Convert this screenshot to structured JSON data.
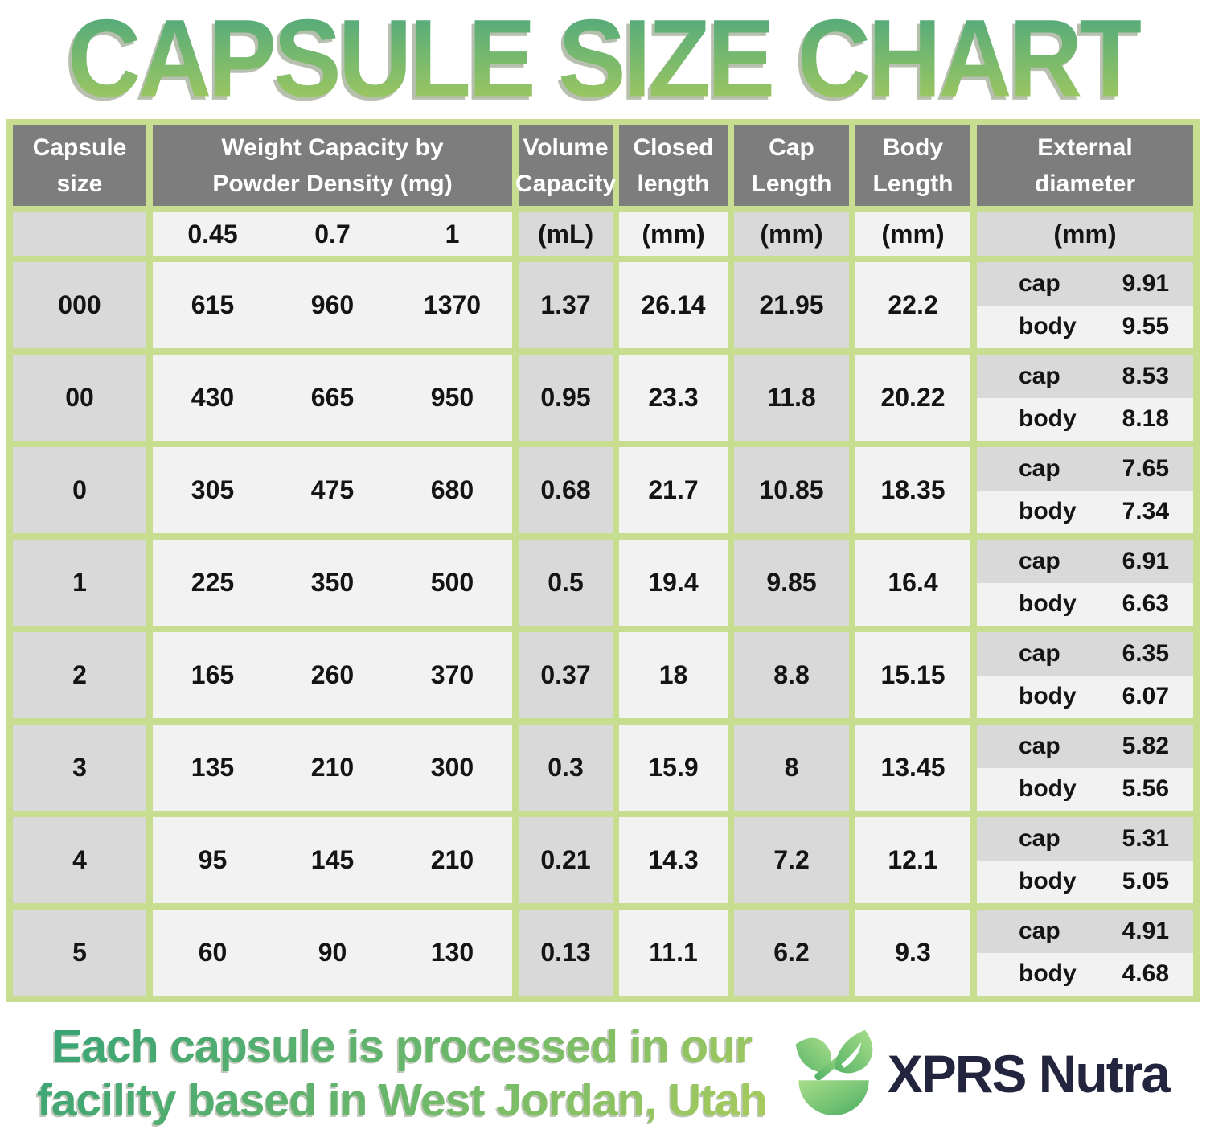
{
  "title": "CAPSULE SIZE CHART",
  "chart_data": {
    "type": "table",
    "title": "CAPSULE SIZE CHART",
    "columns": [
      "Capsule size",
      "Weight Capacity by Powder Density 0.45 (mg)",
      "Weight Capacity by Powder Density 0.7 (mg)",
      "Weight Capacity by Powder Density 1 (mg)",
      "Volume Capacity (mL)",
      "Closed length (mm)",
      "Cap Length (mm)",
      "Body Length (mm)",
      "External diameter cap (mm)",
      "External diameter body (mm)"
    ],
    "rows": [
      [
        "000",
        615,
        960,
        1370,
        1.37,
        26.14,
        21.95,
        22.2,
        9.91,
        9.55
      ],
      [
        "00",
        430,
        665,
        950,
        0.95,
        23.3,
        11.8,
        20.22,
        8.53,
        8.18
      ],
      [
        "0",
        305,
        475,
        680,
        0.68,
        21.7,
        10.85,
        18.35,
        7.65,
        7.34
      ],
      [
        "1",
        225,
        350,
        500,
        0.5,
        19.4,
        9.85,
        16.4,
        6.91,
        6.63
      ],
      [
        "2",
        165,
        260,
        370,
        0.37,
        18,
        8.8,
        15.15,
        6.35,
        6.07
      ],
      [
        "3",
        135,
        210,
        300,
        0.3,
        15.9,
        8,
        13.45,
        5.82,
        5.56
      ],
      [
        "4",
        95,
        145,
        210,
        0.21,
        14.3,
        7.2,
        12.1,
        5.31,
        5.05
      ],
      [
        "5",
        60,
        90,
        130,
        0.13,
        11.1,
        6.2,
        9.3,
        4.91,
        4.68
      ]
    ]
  },
  "table": {
    "headers": {
      "capsule_size": [
        "Capsule size"
      ],
      "weight_capacity": [
        "Weight Capacity by",
        "Powder Density (mg)"
      ],
      "volume_capacity": [
        "Volume",
        "Capacity"
      ],
      "closed_length": [
        "Closed",
        "length"
      ],
      "cap_length": [
        "Cap",
        "Length"
      ],
      "body_length": [
        "Body",
        "Length"
      ],
      "external_diameter": [
        "External",
        "diameter"
      ]
    },
    "units": {
      "weight": [
        "0.45",
        "0.7",
        "1"
      ],
      "volume": "(mL)",
      "closed_length": "(mm)",
      "cap_length": "(mm)",
      "body_length": "(mm)",
      "external_diameter": "(mm)"
    },
    "external_labels": {
      "cap": "cap",
      "body": "body"
    },
    "rows": [
      {
        "size": "000",
        "weights": [
          "615",
          "960",
          "1370"
        ],
        "volume": "1.37",
        "closed": "26.14",
        "cap_length": "21.95",
        "body_length": "22.2",
        "ext_cap": "9.91",
        "ext_body": "9.55"
      },
      {
        "size": "00",
        "weights": [
          "430",
          "665",
          "950"
        ],
        "volume": "0.95",
        "closed": "23.3",
        "cap_length": "11.8",
        "body_length": "20.22",
        "ext_cap": "8.53",
        "ext_body": "8.18"
      },
      {
        "size": "0",
        "weights": [
          "305",
          "475",
          "680"
        ],
        "volume": "0.68",
        "closed": "21.7",
        "cap_length": "10.85",
        "body_length": "18.35",
        "ext_cap": "7.65",
        "ext_body": "7.34"
      },
      {
        "size": "1",
        "weights": [
          "225",
          "350",
          "500"
        ],
        "volume": "0.5",
        "closed": "19.4",
        "cap_length": "9.85",
        "body_length": "16.4",
        "ext_cap": "6.91",
        "ext_body": "6.63"
      },
      {
        "size": "2",
        "weights": [
          "165",
          "260",
          "370"
        ],
        "volume": "0.37",
        "closed": "18",
        "cap_length": "8.8",
        "body_length": "15.15",
        "ext_cap": "6.35",
        "ext_body": "6.07"
      },
      {
        "size": "3",
        "weights": [
          "135",
          "210",
          "300"
        ],
        "volume": "0.3",
        "closed": "15.9",
        "cap_length": "8",
        "body_length": "13.45",
        "ext_cap": "5.82",
        "ext_body": "5.56"
      },
      {
        "size": "4",
        "weights": [
          "95",
          "145",
          "210"
        ],
        "volume": "0.21",
        "closed": "14.3",
        "cap_length": "7.2",
        "body_length": "12.1",
        "ext_cap": "5.31",
        "ext_body": "5.05"
      },
      {
        "size": "5",
        "weights": [
          "60",
          "90",
          "130"
        ],
        "volume": "0.13",
        "closed": "11.1",
        "cap_length": "6.2",
        "body_length": "9.3",
        "ext_cap": "4.91",
        "ext_body": "4.68"
      }
    ]
  },
  "footer": {
    "line1": "Each capsule is processed in our",
    "line2": "facility based in West Jordan, Utah",
    "brand": "XPRS Nutra"
  },
  "colors": {
    "grid_green": "#c7dd90",
    "header_gray": "#7d7d7d",
    "cell_gray": "#d9d9d9",
    "cell_light": "#f2f2f2",
    "title_gradient_top": "#4aa67f",
    "title_gradient_bottom": "#a8ca5d",
    "brand_navy": "#23253f",
    "logo_green_light": "#a9de8b",
    "logo_green_dark": "#4cae62"
  }
}
